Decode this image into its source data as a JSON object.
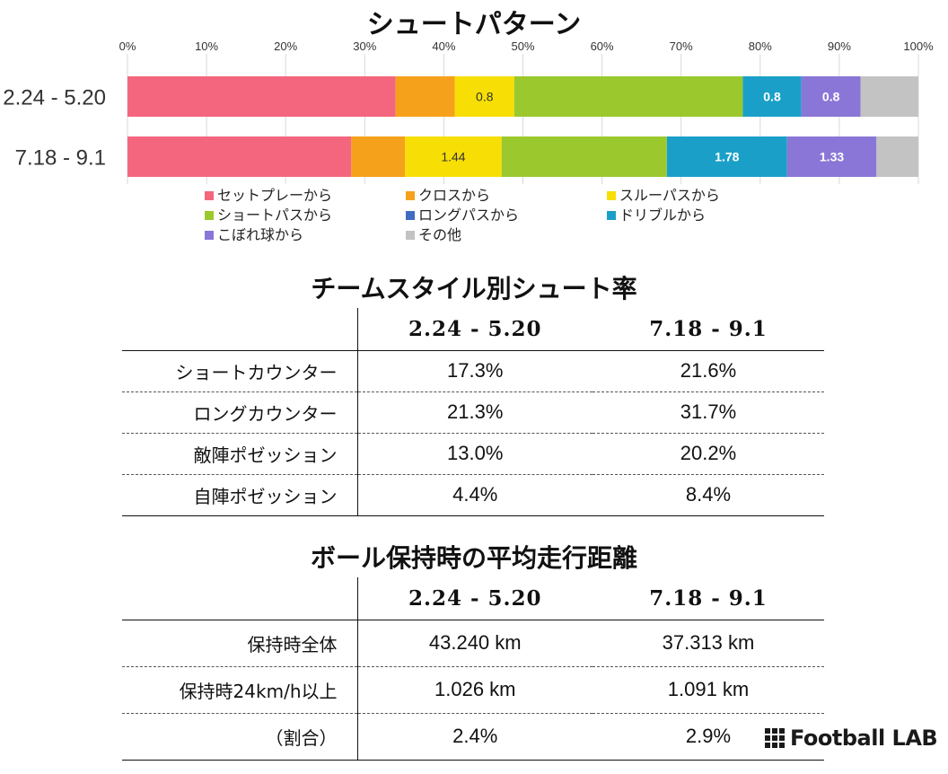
{
  "chart_data": {
    "type": "bar",
    "orientation": "horizontal-stacked-100",
    "title": "シュートパターン",
    "categories": [
      "2.24 - 5.20",
      "7.18 - 9.1"
    ],
    "x_ticks": [
      "0%",
      "10%",
      "20%",
      "30%",
      "40%",
      "50%",
      "60%",
      "70%",
      "80%",
      "90%",
      "100%"
    ],
    "xlim": [
      0,
      100
    ],
    "grid": true,
    "legend_position": "bottom",
    "series": [
      {
        "name": "セットプレーから",
        "color": "#f4667e",
        "values": [
          33.9,
          28.3
        ],
        "labels": [
          "",
          ""
        ]
      },
      {
        "name": "クロスから",
        "color": "#f6a11b",
        "values": [
          7.5,
          6.8
        ],
        "labels": [
          "",
          ""
        ]
      },
      {
        "name": "スルーパスから",
        "color": "#f7df05",
        "values": [
          7.5,
          12.2
        ],
        "labels": [
          "0.8",
          "1.44"
        ]
      },
      {
        "name": "ショートパスから",
        "color": "#9bc92d",
        "values": [
          28.9,
          20.9
        ],
        "labels": [
          "",
          ""
        ]
      },
      {
        "name": "ロングパスから",
        "color": "#3f6cc1",
        "values": [
          0.0,
          0.0
        ],
        "labels": [
          "",
          ""
        ]
      },
      {
        "name": "ドリブルから",
        "color": "#1aa0c8",
        "values": [
          7.4,
          15.2
        ],
        "labels": [
          "0.8",
          "1.78"
        ]
      },
      {
        "name": "こぼれ球から",
        "color": "#8a76d6",
        "values": [
          7.5,
          11.3
        ],
        "labels": [
          "0.8",
          "1.33"
        ]
      },
      {
        "name": "その他",
        "color": "#c3c3c3",
        "values": [
          7.3,
          5.3
        ],
        "labels": [
          "",
          ""
        ]
      }
    ]
  },
  "team_style": {
    "title": "チームスタイル別シュート率",
    "columns": [
      "2.24 - 5.20",
      "7.18 - 9.1"
    ],
    "rows": [
      {
        "label": "ショートカウンター",
        "a": "17.3%",
        "b": "21.6%"
      },
      {
        "label": "ロングカウンター",
        "a": "21.3%",
        "b": "31.7%"
      },
      {
        "label": "敵陣ポゼッション",
        "a": "13.0%",
        "b": "20.2%"
      },
      {
        "label": "自陣ポゼッション",
        "a": "4.4%",
        "b": "8.4%"
      }
    ]
  },
  "distance": {
    "title": "ボール保持時の平均走行距離",
    "columns": [
      "2.24 - 5.20",
      "7.18 - 9.1"
    ],
    "rows": [
      {
        "label": "保持時全体",
        "a": "43.240 km",
        "b": "37.313 km"
      },
      {
        "label": "保持時24km/h以上",
        "a": "1.026 km",
        "b": "1.091 km"
      },
      {
        "label": "（割合）",
        "a": "2.4%",
        "b": "2.9%"
      }
    ]
  },
  "logo": {
    "text": "Football LAB"
  }
}
